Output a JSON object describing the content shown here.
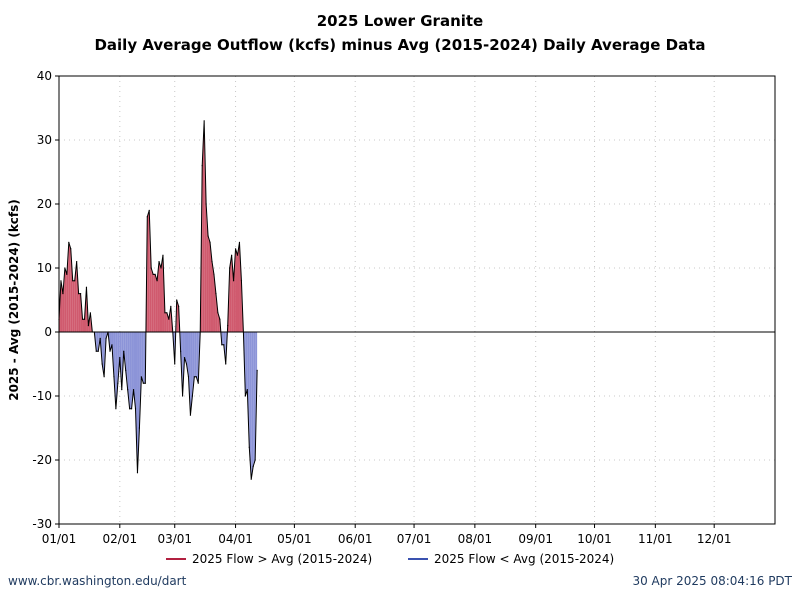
{
  "chart_data": {
    "type": "area",
    "title": "2025 Lower Granite",
    "subtitle": "Daily Average Outflow (kcfs) minus Avg (2015-2024) Daily Average Data",
    "ylabel": "2025 - Avg (2015-2024) (kcfs)",
    "xlabel": "",
    "ylim": [
      -30,
      40
    ],
    "yticks": [
      -30,
      -20,
      -10,
      0,
      10,
      20,
      30,
      40
    ],
    "xlim_days": [
      0,
      365
    ],
    "xticks": [
      {
        "label": "01/01",
        "day": 0
      },
      {
        "label": "02/01",
        "day": 31
      },
      {
        "label": "03/01",
        "day": 59
      },
      {
        "label": "04/01",
        "day": 90
      },
      {
        "label": "05/01",
        "day": 120
      },
      {
        "label": "06/01",
        "day": 151
      },
      {
        "label": "07/01",
        "day": 181
      },
      {
        "label": "08/01",
        "day": 212
      },
      {
        "label": "09/01",
        "day": 243
      },
      {
        "label": "10/01",
        "day": 273
      },
      {
        "label": "11/01",
        "day": 304
      },
      {
        "label": "12/01",
        "day": 334
      }
    ],
    "grid": true,
    "legend_position": "bottom",
    "series": [
      {
        "name": "2025 Flow > Avg (2015-2024)",
        "color": "#d05a6e",
        "line_color": "#b22040"
      },
      {
        "name": "2025 Flow < Avg (2015-2024)",
        "color": "#8c94d8",
        "line_color": "#3a52b0"
      }
    ],
    "values": [
      2,
      8,
      6,
      10,
      9,
      14,
      13,
      8,
      8,
      11,
      6,
      6,
      2,
      2,
      7,
      1,
      3,
      0,
      0,
      -3,
      -3,
      -1,
      -5,
      -7,
      -1,
      0,
      -3,
      -2,
      -7,
      -12,
      -8,
      -4,
      -9,
      -3,
      -6,
      -9,
      -12,
      -12,
      -9,
      -12,
      -22,
      -15,
      -7,
      -8,
      -8,
      18,
      19,
      10,
      9,
      9,
      8,
      11,
      10,
      12,
      3,
      3,
      2,
      4,
      0,
      -5,
      5,
      4,
      -3,
      -10,
      -4,
      -5,
      -7,
      -13,
      -10,
      -7,
      -7,
      -8,
      0,
      26,
      33,
      20,
      15,
      14,
      11,
      9,
      6,
      3,
      2,
      -2,
      -2,
      -5,
      1,
      10,
      12,
      8,
      13,
      12,
      14,
      8,
      0,
      -10,
      -9,
      -18,
      -23,
      -21,
      -20,
      -6
    ],
    "colors": {
      "axis": "#000000",
      "grid": "#c8c8c8",
      "zero_line": "#000000"
    }
  },
  "footer": {
    "left": "www.cbr.washington.edu/dart",
    "right": "30 Apr 2025 08:04:16 PDT"
  }
}
